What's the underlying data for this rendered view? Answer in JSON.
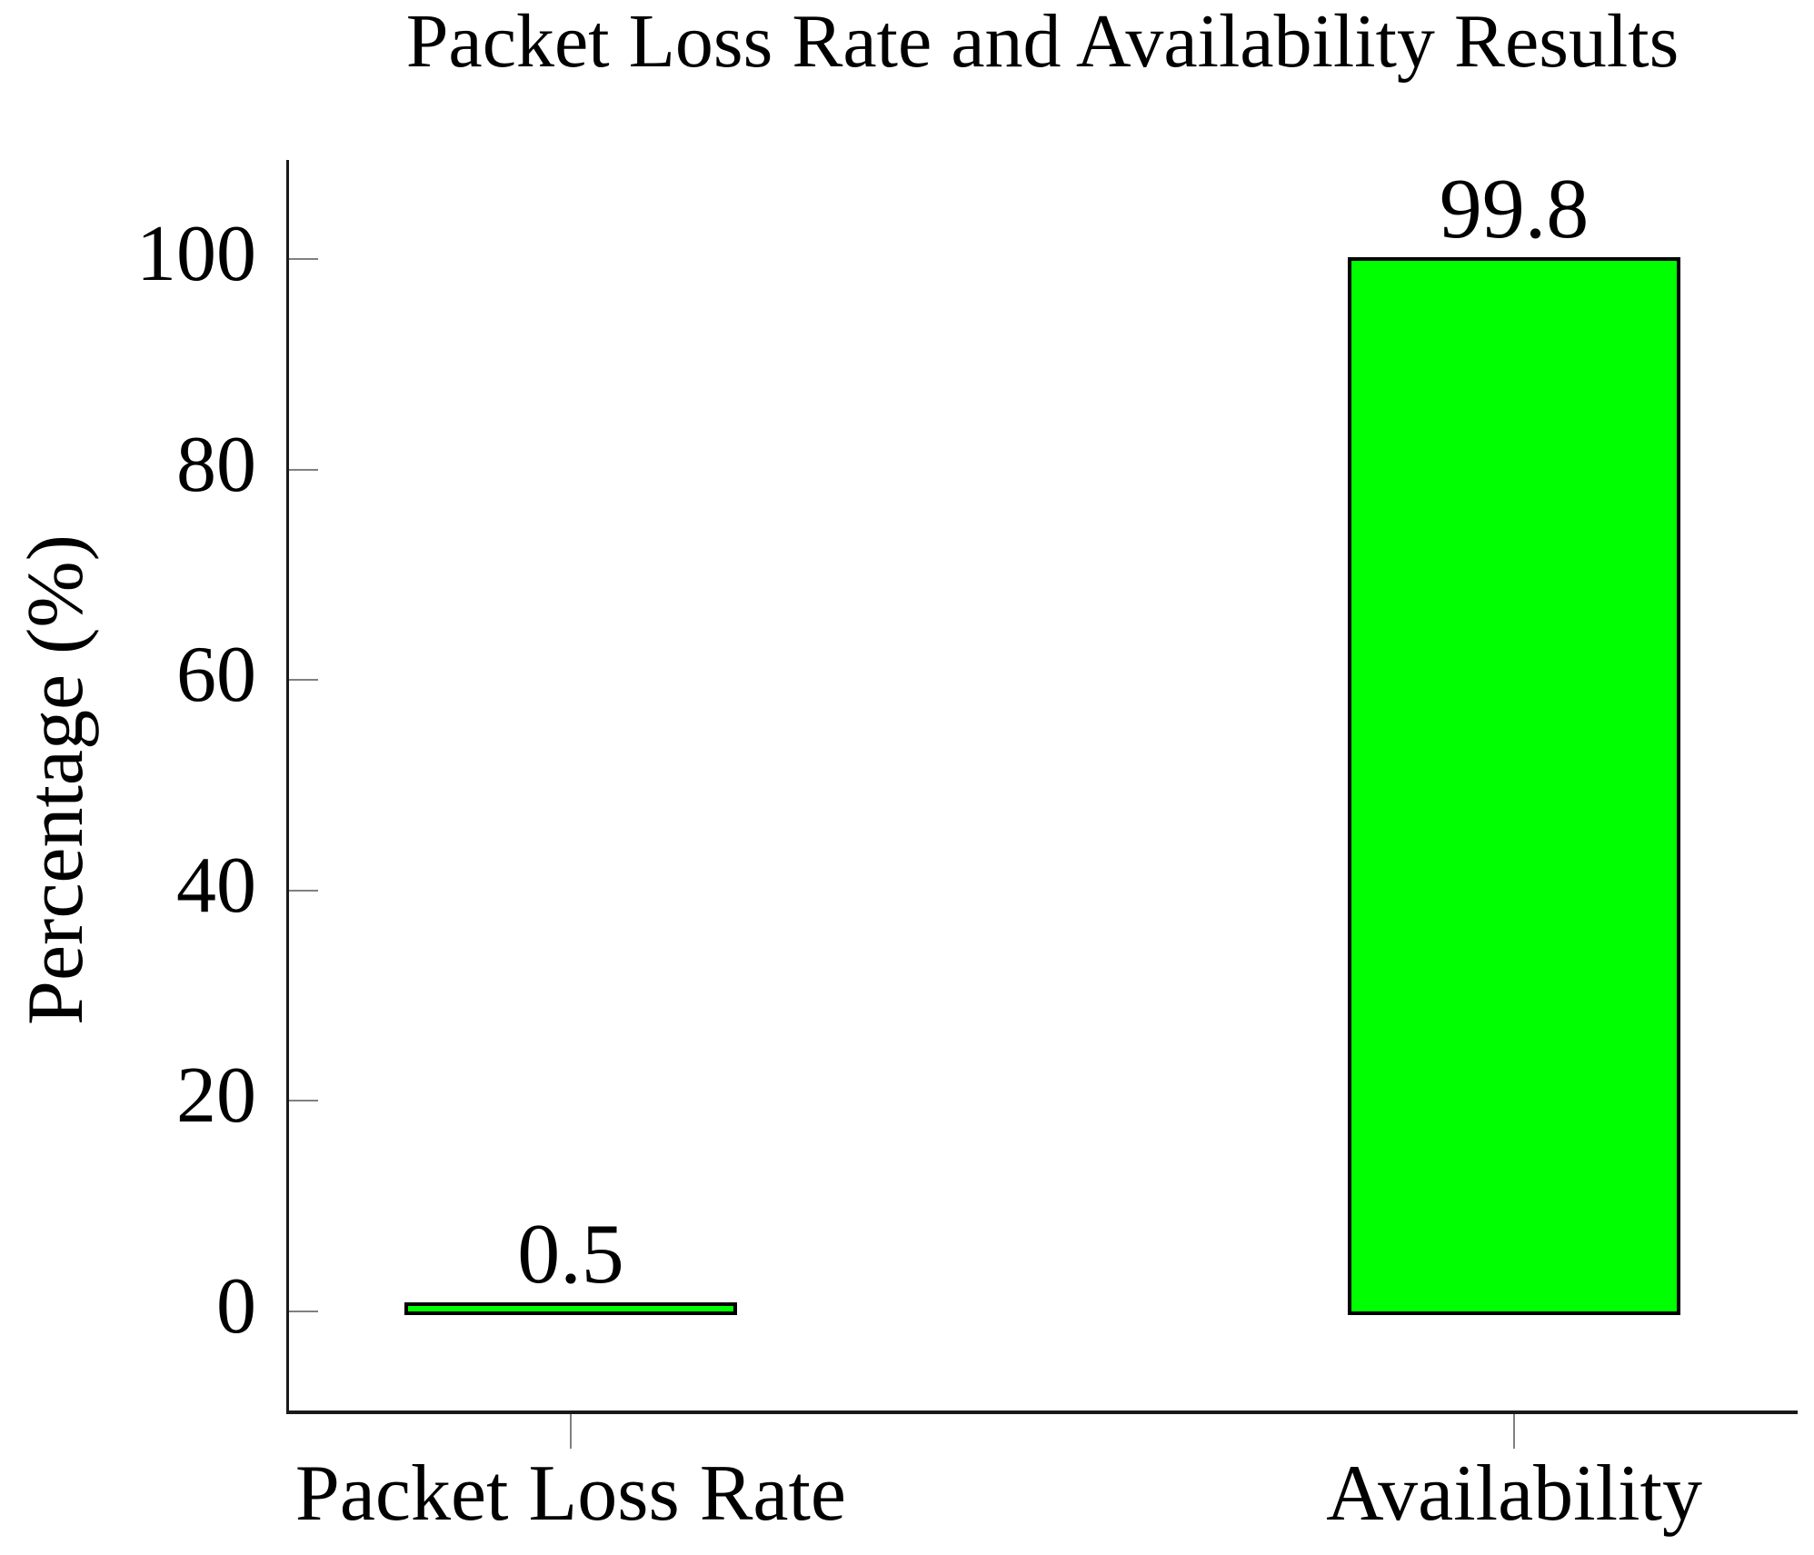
{
  "chart_data": {
    "type": "bar",
    "title": "Packet Loss Rate and Availability Results",
    "xlabel": "",
    "ylabel": "Percentage (%)",
    "categories": [
      "Packet Loss Rate",
      "Availability"
    ],
    "values": [
      0.5,
      99.8
    ],
    "value_labels": [
      "0.5",
      "99.8"
    ],
    "yticks": [
      0,
      20,
      40,
      60,
      80,
      100
    ],
    "ytick_labels": [
      "0",
      "20",
      "40",
      "60",
      "80",
      "100"
    ],
    "ylim": [
      -9.4,
      109.4
    ],
    "grid": false,
    "legend": null,
    "bar_color": "#00ff00",
    "bar_border_color": "#000000",
    "axis_color": "#1a1a1a",
    "tick_color": "#808080",
    "text_color": "#000000"
  }
}
